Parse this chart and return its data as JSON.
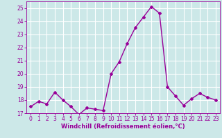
{
  "x": [
    0,
    1,
    2,
    3,
    4,
    5,
    6,
    7,
    8,
    9,
    10,
    11,
    12,
    13,
    14,
    15,
    16,
    17,
    18,
    19,
    20,
    21,
    22,
    23
  ],
  "y": [
    17.5,
    17.9,
    17.7,
    18.6,
    18.0,
    17.5,
    16.9,
    17.4,
    17.3,
    17.2,
    20.0,
    20.9,
    22.3,
    23.5,
    24.3,
    25.1,
    24.6,
    19.0,
    18.3,
    17.6,
    18.1,
    18.5,
    18.2,
    18.0
  ],
  "line_color": "#990099",
  "marker": "D",
  "marker_size": 2,
  "bg_color": "#cce8e8",
  "grid_color": "#b0d8d8",
  "xlabel": "Windchill (Refroidissement éolien,°C)",
  "xlabel_color": "#990099",
  "tick_color": "#990099",
  "ylim": [
    17,
    25.5
  ],
  "xlim": [
    -0.5,
    23.5
  ],
  "yticks": [
    17,
    18,
    19,
    20,
    21,
    22,
    23,
    24,
    25
  ],
  "xticks": [
    0,
    1,
    2,
    3,
    4,
    5,
    6,
    7,
    8,
    9,
    10,
    11,
    12,
    13,
    14,
    15,
    16,
    17,
    18,
    19,
    20,
    21,
    22,
    23
  ],
  "linewidth": 1.0,
  "tick_fontsize": 5.5,
  "xlabel_fontsize": 6.0
}
